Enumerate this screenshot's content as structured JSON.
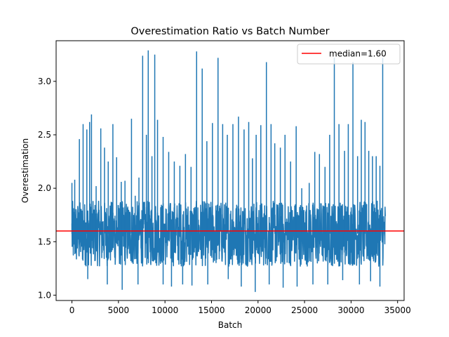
{
  "chart_data": {
    "type": "line",
    "title": "Overestimation Ratio vs Batch Number",
    "xlabel": "Batch",
    "ylabel": "Overestimation",
    "xlim": [
      -1700,
      35700
    ],
    "ylim": [
      0.95,
      3.38
    ],
    "xticks": [
      0,
      5000,
      10000,
      15000,
      20000,
      25000,
      30000,
      35000
    ],
    "yticks": [
      1.0,
      1.5,
      2.0,
      2.5,
      3.0
    ],
    "xtick_labels": [
      "0",
      "5000",
      "10000",
      "15000",
      "20000",
      "25000",
      "30000",
      "35000"
    ],
    "ytick_labels": [
      "1.0",
      "1.5",
      "2.0",
      "2.5",
      "3.0"
    ],
    "grid": false,
    "legend_position": "top-right",
    "n_batches": 33700,
    "series": [
      {
        "name": "",
        "color": "#1f77b4",
        "band_low": 1.27,
        "band_high": 1.88,
        "spikes": [
          {
            "x": 0,
            "y": 2.05
          },
          {
            "x": 300,
            "y": 2.08
          },
          {
            "x": 800,
            "y": 2.46
          },
          {
            "x": 1200,
            "y": 2.6
          },
          {
            "x": 1600,
            "y": 2.55
          },
          {
            "x": 1900,
            "y": 2.62
          },
          {
            "x": 2100,
            "y": 2.69
          },
          {
            "x": 2600,
            "y": 2.02
          },
          {
            "x": 3100,
            "y": 2.56
          },
          {
            "x": 3500,
            "y": 2.38
          },
          {
            "x": 3900,
            "y": 2.25
          },
          {
            "x": 4400,
            "y": 2.6
          },
          {
            "x": 4800,
            "y": 2.29
          },
          {
            "x": 5300,
            "y": 2.06
          },
          {
            "x": 5700,
            "y": 2.07
          },
          {
            "x": 6400,
            "y": 2.65
          },
          {
            "x": 6800,
            "y": 1.93
          },
          {
            "x": 7200,
            "y": 2.1
          },
          {
            "x": 7600,
            "y": 3.24
          },
          {
            "x": 8000,
            "y": 2.5
          },
          {
            "x": 8200,
            "y": 3.29
          },
          {
            "x": 8600,
            "y": 2.3
          },
          {
            "x": 8900,
            "y": 3.25
          },
          {
            "x": 9200,
            "y": 2.64
          },
          {
            "x": 9800,
            "y": 2.48
          },
          {
            "x": 10400,
            "y": 2.34
          },
          {
            "x": 11000,
            "y": 2.25
          },
          {
            "x": 11600,
            "y": 2.21
          },
          {
            "x": 12200,
            "y": 2.32
          },
          {
            "x": 12800,
            "y": 2.2
          },
          {
            "x": 13400,
            "y": 3.28
          },
          {
            "x": 14000,
            "y": 3.12
          },
          {
            "x": 14500,
            "y": 2.44
          },
          {
            "x": 15100,
            "y": 2.61
          },
          {
            "x": 15700,
            "y": 3.22
          },
          {
            "x": 16200,
            "y": 2.6
          },
          {
            "x": 16700,
            "y": 2.5
          },
          {
            "x": 17300,
            "y": 2.6
          },
          {
            "x": 17900,
            "y": 2.67
          },
          {
            "x": 18500,
            "y": 2.55
          },
          {
            "x": 19000,
            "y": 2.62
          },
          {
            "x": 19400,
            "y": 2.28
          },
          {
            "x": 19800,
            "y": 2.5
          },
          {
            "x": 20300,
            "y": 2.59
          },
          {
            "x": 20900,
            "y": 3.18
          },
          {
            "x": 21400,
            "y": 2.6
          },
          {
            "x": 21800,
            "y": 2.42
          },
          {
            "x": 22400,
            "y": 2.38
          },
          {
            "x": 22900,
            "y": 2.5
          },
          {
            "x": 23500,
            "y": 2.25
          },
          {
            "x": 24100,
            "y": 2.58
          },
          {
            "x": 24700,
            "y": 2.0
          },
          {
            "x": 25500,
            "y": 2.05
          },
          {
            "x": 26100,
            "y": 2.34
          },
          {
            "x": 26600,
            "y": 2.32
          },
          {
            "x": 27200,
            "y": 2.2
          },
          {
            "x": 27700,
            "y": 2.5
          },
          {
            "x": 28200,
            "y": 3.22
          },
          {
            "x": 28700,
            "y": 2.6
          },
          {
            "x": 29300,
            "y": 2.35
          },
          {
            "x": 29700,
            "y": 2.6
          },
          {
            "x": 30200,
            "y": 3.18
          },
          {
            "x": 30700,
            "y": 2.3
          },
          {
            "x": 31100,
            "y": 2.64
          },
          {
            "x": 31500,
            "y": 2.62
          },
          {
            "x": 31900,
            "y": 2.35
          },
          {
            "x": 32300,
            "y": 2.3
          },
          {
            "x": 32700,
            "y": 2.3
          },
          {
            "x": 33100,
            "y": 2.21
          },
          {
            "x": 33400,
            "y": 3.22
          }
        ],
        "dips": [
          {
            "x": 1700,
            "y": 1.15
          },
          {
            "x": 3800,
            "y": 1.1
          },
          {
            "x": 5400,
            "y": 1.05
          },
          {
            "x": 7100,
            "y": 1.1
          },
          {
            "x": 9800,
            "y": 1.1
          },
          {
            "x": 10700,
            "y": 1.08
          },
          {
            "x": 11900,
            "y": 1.1
          },
          {
            "x": 12900,
            "y": 1.09
          },
          {
            "x": 14600,
            "y": 1.1
          },
          {
            "x": 16800,
            "y": 1.15
          },
          {
            "x": 18200,
            "y": 1.08
          },
          {
            "x": 19700,
            "y": 1.03
          },
          {
            "x": 21200,
            "y": 1.1
          },
          {
            "x": 22700,
            "y": 1.07
          },
          {
            "x": 24200,
            "y": 1.08
          },
          {
            "x": 25900,
            "y": 1.1
          },
          {
            "x": 27500,
            "y": 1.1
          },
          {
            "x": 29100,
            "y": 1.14
          },
          {
            "x": 30900,
            "y": 1.1
          },
          {
            "x": 32100,
            "y": 1.13
          },
          {
            "x": 33100,
            "y": 1.08
          }
        ]
      },
      {
        "name": "median=1.60",
        "color": "#ff0000",
        "hline": 1.6
      }
    ]
  }
}
